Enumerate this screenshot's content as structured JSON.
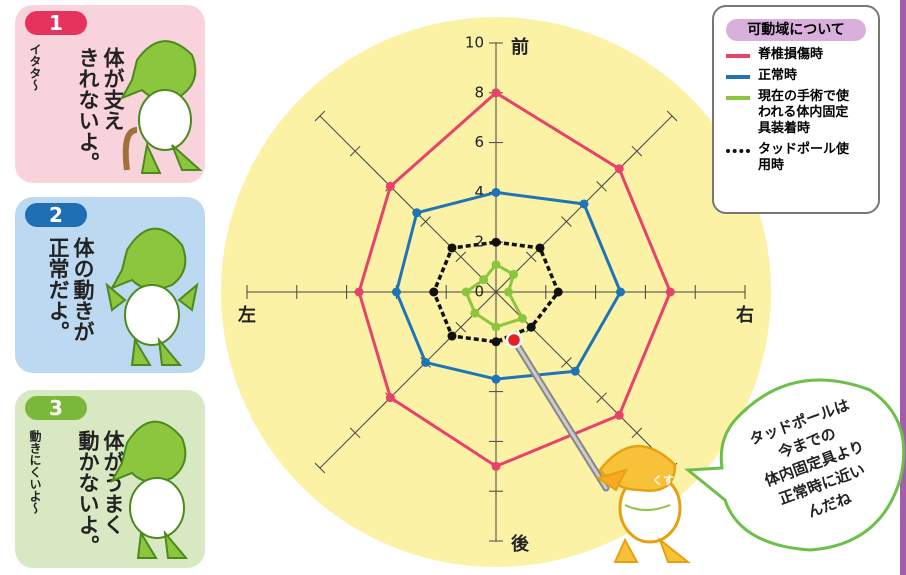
{
  "chart_data": {
    "type": "radar",
    "categories": [
      "前",
      null,
      "右",
      null,
      "後",
      null,
      "左",
      null
    ],
    "ylim": [
      0,
      10
    ],
    "yticks": [
      0,
      2,
      4,
      6,
      8,
      10
    ],
    "legend_title": "可動域について",
    "series": [
      {
        "name": "脊椎損傷時",
        "color": "#e8416a",
        "style": "solid",
        "values": [
          8,
          7,
          7,
          7,
          7,
          6,
          5.5,
          6
        ]
      },
      {
        "name": "正常時",
        "color": "#1f74b8",
        "style": "solid",
        "values": [
          4,
          5,
          5,
          4.5,
          3.5,
          4,
          4,
          4.5
        ]
      },
      {
        "name": "現在の手術で使われる体内固定具装着時",
        "color": "#8cc63f",
        "style": "solid",
        "values": [
          1.1,
          1,
          0.5,
          1.5,
          1.4,
          1.2,
          1.2,
          0.7
        ]
      },
      {
        "name": "タッドポール使用時",
        "color": "#111111",
        "style": "dashed",
        "values": [
          2,
          2.5,
          2.5,
          2,
          2,
          2.5,
          2.5,
          2.5
        ]
      }
    ]
  },
  "panels": [
    {
      "number": "1",
      "lines": [
        "体が支え",
        "きれないよ。"
      ],
      "note": "イタタ〜"
    },
    {
      "number": "2",
      "lines": [
        "体の動きが",
        "正常だよ。"
      ]
    },
    {
      "number": "3",
      "lines": [
        "体がうまく",
        "動かないよ。"
      ],
      "note": "動きにくいよ〜"
    }
  ],
  "bubble": {
    "lines": [
      "タッドポールは",
      "今までの",
      "体内固定具より",
      "正常時に近い",
      "んだね"
    ]
  }
}
